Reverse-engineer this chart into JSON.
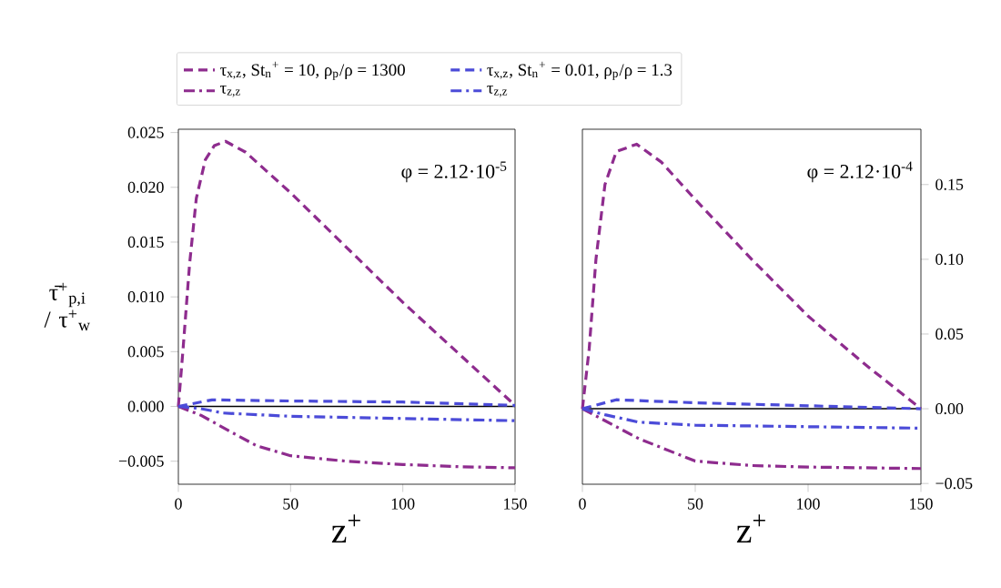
{
  "chart_data": [
    {
      "type": "line",
      "xlabel": "z$^{+}$",
      "ylabel": "τ̄$^{+}$$_{p,i}$ / τ$^{+}$$_{w}$",
      "annotations": [
        "φ = 2.12·10$^{-5}$"
      ],
      "xlim": [
        0,
        150
      ],
      "ylim": [
        -0.0071,
        0.0253
      ],
      "xticks": [
        0,
        50,
        100,
        150
      ],
      "yticks": [
        {
          "value": -0.005,
          "label": "−0.005"
        },
        {
          "value": 0,
          "label": "0.000"
        },
        {
          "value": 0.005,
          "label": "0.005"
        },
        {
          "value": 0.01,
          "label": "0.010"
        },
        {
          "value": 0.015,
          "label": "0.015"
        },
        {
          "value": 0.02,
          "label": "0.020"
        },
        {
          "value": 0.025,
          "label": "0.025"
        }
      ],
      "legend": "top",
      "ref_lines": [
        {
          "axis": "y",
          "value": 0,
          "color": "#000000"
        }
      ],
      "series": [
        {
          "name": "τ$_{x,z}$, St$_{n}$$^{+}$ = 10, ρ$_{p}$/ρ = 1300",
          "color": "#8e2c8e",
          "line_style": "dashed",
          "x": [
            0,
            2,
            5,
            8,
            12,
            16,
            21,
            30,
            50,
            75,
            100,
            125,
            150
          ],
          "values": [
            0,
            0.005,
            0.013,
            0.019,
            0.0225,
            0.0238,
            0.0242,
            0.0232,
            0.0195,
            0.0145,
            0.0095,
            0.0048,
            0.0001
          ]
        },
        {
          "name": "τ$_{x,z}$, St$_{n}$$^{+}$ = 0.01, ρ$_{p}$/ρ = 1.3",
          "color": "#4b4bd8",
          "line_style": "dashed",
          "x": [
            0,
            15,
            50,
            100,
            150
          ],
          "values": [
            0,
            0.0006,
            0.0005,
            0.0004,
            0.0001
          ]
        },
        {
          "name": "τ$_{z,z}$",
          "color": "#8e2c8e",
          "line_style": "dashdot",
          "x": [
            0,
            10,
            25,
            35,
            50,
            75,
            100,
            125,
            150
          ],
          "values": [
            0,
            -0.0008,
            -0.0025,
            -0.0036,
            -0.0045,
            -0.005,
            -0.0053,
            -0.0055,
            -0.0056
          ]
        },
        {
          "name": "τ$_{z,z}$",
          "color": "#4b4bd8",
          "line_style": "dashdot",
          "x": [
            0,
            10,
            20,
            50,
            100,
            150
          ],
          "values": [
            0,
            -0.0002,
            -0.0006,
            -0.0009,
            -0.0011,
            -0.0013
          ]
        }
      ]
    },
    {
      "type": "line",
      "xlabel": "z$^{+}$",
      "annotations": [
        "φ = 2.12·10$^{-4}$"
      ],
      "xlim": [
        0,
        150
      ],
      "ylim": [
        -0.0505,
        0.187
      ],
      "xticks": [
        0,
        50,
        100,
        150
      ],
      "yticks": [
        {
          "value": -0.05,
          "label": "−0.05"
        },
        {
          "value": 0,
          "label": "0.00"
        },
        {
          "value": 0.05,
          "label": "0.05"
        },
        {
          "value": 0.1,
          "label": "0.10"
        },
        {
          "value": 0.15,
          "label": "0.15"
        }
      ],
      "ref_lines": [
        {
          "axis": "y",
          "value": 0,
          "color": "#000000"
        }
      ],
      "series": [
        {
          "color": "#8e2c8e",
          "line_style": "dashed",
          "x": [
            0,
            3,
            6,
            10,
            15,
            24,
            35,
            50,
            75,
            100,
            125,
            150
          ],
          "values": [
            0,
            0.04,
            0.1,
            0.15,
            0.172,
            0.177,
            0.165,
            0.14,
            0.1,
            0.062,
            0.03,
            0
          ]
        },
        {
          "color": "#4b4bd8",
          "line_style": "dashed",
          "x": [
            0,
            15,
            50,
            100,
            150
          ],
          "values": [
            0,
            0.006,
            0.004,
            0.002,
            0
          ]
        },
        {
          "color": "#8e2c8e",
          "line_style": "dashdot",
          "x": [
            0,
            25,
            50,
            75,
            100,
            150
          ],
          "values": [
            0,
            -0.02,
            -0.035,
            -0.038,
            -0.039,
            -0.04
          ]
        },
        {
          "color": "#4b4bd8",
          "line_style": "dashdot",
          "x": [
            0,
            10,
            25,
            50,
            100,
            150
          ],
          "values": [
            0,
            -0.004,
            -0.009,
            -0.011,
            -0.012,
            -0.013
          ]
        }
      ]
    }
  ]
}
